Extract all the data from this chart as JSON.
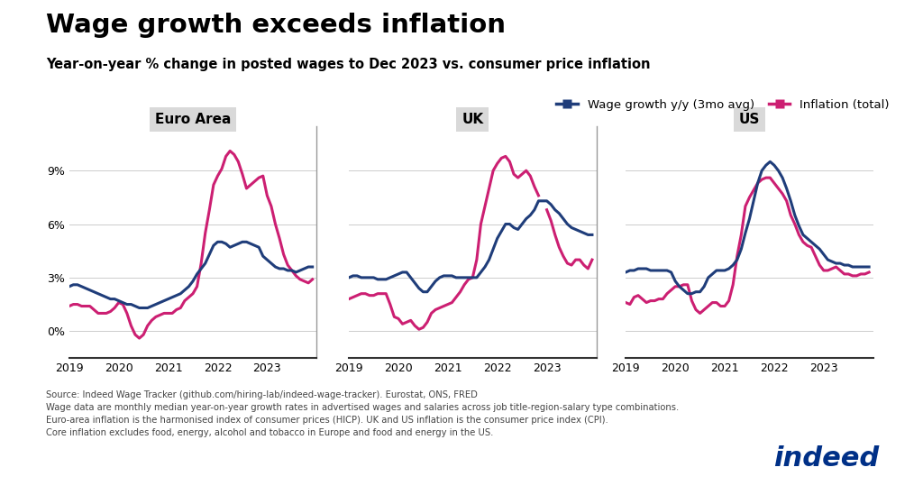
{
  "title": "Wage growth exceeds inflation",
  "subtitle": "Year-on-year % change in posted wages to Dec 2023 vs. consumer price inflation",
  "legend_wage": "Wage growth y/y (3mo avg)",
  "legend_inflation": "Inflation (total)",
  "wage_color": "#1f3d7a",
  "inflation_color": "#cc1f72",
  "panel_bg": "#d9d9d9",
  "panels": [
    "Euro Area",
    "UK",
    "US"
  ],
  "source_text": "Source: Indeed Wage Tracker (github.com/hiring-lab/indeed-wage-tracker). Eurostat, ONS, FRED\nWage data are monthly median year-on-year growth rates in advertised wages and salaries across job title-region-salary type combinations.\nEuro-area inflation is the harmonised index of consumer prices (HICP). UK and US inflation is the consumer price index (CPI).\nCore inflation excludes food, energy, alcohol and tobacco in Europe and food and energy in the US.",
  "euro_wage": [
    0.025,
    0.026,
    0.026,
    0.025,
    0.024,
    0.023,
    0.022,
    0.021,
    0.02,
    0.019,
    0.018,
    0.018,
    0.017,
    0.016,
    0.015,
    0.015,
    0.014,
    0.013,
    0.013,
    0.013,
    0.014,
    0.015,
    0.016,
    0.017,
    0.018,
    0.019,
    0.02,
    0.021,
    0.023,
    0.025,
    0.028,
    0.032,
    0.035,
    0.038,
    0.043,
    0.048,
    0.05,
    0.05,
    0.049,
    0.047,
    0.048,
    0.049,
    0.05,
    0.05,
    0.049,
    0.048,
    0.047,
    0.042,
    0.04,
    0.038,
    0.036,
    0.035,
    0.035,
    0.034,
    0.034,
    0.033,
    0.034,
    0.035,
    0.036,
    0.036
  ],
  "euro_inflation": [
    0.014,
    0.015,
    0.015,
    0.014,
    0.014,
    0.014,
    0.012,
    0.01,
    0.01,
    0.01,
    0.011,
    0.013,
    0.016,
    0.015,
    0.01,
    0.003,
    -0.002,
    -0.004,
    -0.002,
    0.003,
    0.006,
    0.008,
    0.009,
    0.01,
    0.01,
    0.01,
    0.012,
    0.013,
    0.017,
    0.019,
    0.021,
    0.025,
    0.038,
    0.055,
    0.068,
    0.082,
    0.087,
    0.091,
    0.098,
    0.101,
    0.099,
    0.095,
    0.088,
    0.08,
    0.082,
    0.084,
    0.086,
    0.087,
    0.076,
    0.07,
    0.06,
    0.052,
    0.043,
    0.037,
    0.034,
    0.031,
    0.029,
    0.028,
    0.027,
    0.029
  ],
  "uk_wage": [
    0.03,
    0.031,
    0.031,
    0.03,
    0.03,
    0.03,
    0.03,
    0.029,
    0.029,
    0.029,
    0.03,
    0.031,
    0.032,
    0.033,
    0.033,
    0.03,
    0.027,
    0.024,
    0.022,
    0.022,
    0.025,
    0.028,
    0.03,
    0.031,
    0.031,
    0.031,
    0.03,
    0.03,
    0.03,
    0.03,
    0.03,
    0.03,
    0.033,
    0.036,
    0.04,
    0.046,
    0.052,
    0.056,
    0.06,
    0.06,
    0.058,
    0.057,
    0.06,
    0.063,
    0.065,
    0.068,
    0.073,
    0.073,
    0.073,
    0.071,
    0.068,
    0.066,
    0.063,
    0.06,
    0.058,
    0.057,
    0.056,
    0.055,
    0.054,
    0.054
  ],
  "uk_inflation": [
    0.018,
    0.019,
    0.02,
    0.021,
    0.021,
    0.02,
    0.02,
    0.021,
    0.021,
    0.021,
    0.015,
    0.008,
    0.007,
    0.004,
    0.005,
    0.006,
    0.003,
    0.001,
    0.002,
    0.005,
    0.01,
    0.012,
    0.013,
    0.014,
    0.015,
    0.016,
    0.019,
    0.022,
    0.026,
    0.029,
    0.03,
    0.04,
    0.06,
    0.07,
    0.08,
    0.09,
    0.094,
    0.097,
    0.098,
    0.095,
    0.088,
    0.086,
    0.088,
    0.09,
    0.087,
    0.081,
    0.076,
    0.071,
    0.068,
    0.062,
    0.054,
    0.047,
    0.042,
    0.038,
    0.037,
    0.04,
    0.04,
    0.037,
    0.035,
    0.04
  ],
  "uk_inflation_break": 48,
  "us_wage": [
    0.033,
    0.034,
    0.034,
    0.035,
    0.035,
    0.035,
    0.034,
    0.034,
    0.034,
    0.034,
    0.034,
    0.033,
    0.028,
    0.025,
    0.023,
    0.021,
    0.021,
    0.022,
    0.022,
    0.025,
    0.03,
    0.032,
    0.034,
    0.034,
    0.034,
    0.035,
    0.037,
    0.04,
    0.046,
    0.055,
    0.063,
    0.073,
    0.083,
    0.09,
    0.093,
    0.095,
    0.093,
    0.09,
    0.086,
    0.08,
    0.073,
    0.065,
    0.059,
    0.054,
    0.052,
    0.05,
    0.048,
    0.046,
    0.043,
    0.04,
    0.039,
    0.038,
    0.038,
    0.037,
    0.037,
    0.036,
    0.036,
    0.036,
    0.036,
    0.036
  ],
  "us_inflation": [
    0.016,
    0.015,
    0.019,
    0.02,
    0.018,
    0.016,
    0.017,
    0.017,
    0.018,
    0.018,
    0.021,
    0.023,
    0.025,
    0.025,
    0.026,
    0.026,
    0.017,
    0.012,
    0.01,
    0.012,
    0.014,
    0.016,
    0.016,
    0.014,
    0.014,
    0.017,
    0.026,
    0.042,
    0.054,
    0.07,
    0.075,
    0.079,
    0.083,
    0.085,
    0.086,
    0.086,
    0.083,
    0.08,
    0.077,
    0.073,
    0.065,
    0.06,
    0.054,
    0.05,
    0.048,
    0.047,
    0.042,
    0.037,
    0.034,
    0.034,
    0.035,
    0.036,
    0.034,
    0.032,
    0.032,
    0.031,
    0.031,
    0.032,
    0.032,
    0.033
  ]
}
